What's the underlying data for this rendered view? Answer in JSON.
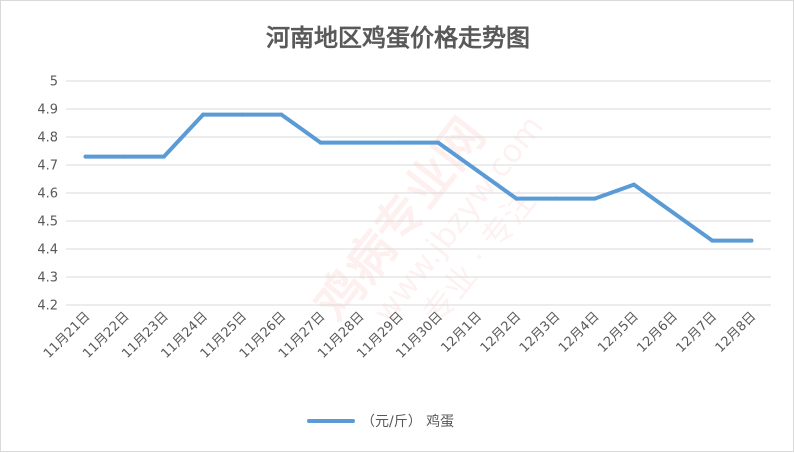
{
  "chart_data": {
    "type": "line",
    "title": "河南地区鸡蛋价格走势图",
    "categories": [
      "11月21日",
      "11月22日",
      "11月23日",
      "11月24日",
      "11月25日",
      "11月26日",
      "11月27日",
      "11月28日",
      "11月29日",
      "11月30日",
      "12月1日",
      "12月2日",
      "12月3日",
      "12月4日",
      "12月5日",
      "12月6日",
      "12月7日",
      "12月8日"
    ],
    "series": [
      {
        "name": "（元/斤） 鸡蛋",
        "color": "#5b9bd5",
        "values": [
          4.73,
          4.73,
          4.73,
          4.88,
          4.88,
          4.88,
          4.78,
          4.78,
          4.78,
          4.78,
          4.68,
          4.58,
          4.58,
          4.58,
          4.63,
          4.53,
          4.43,
          4.43
        ]
      }
    ],
    "ylim": [
      4.2,
      5.0
    ],
    "yticks": [
      "4.2",
      "4.3",
      "4.4",
      "4.5",
      "4.6",
      "4.7",
      "4.8",
      "4.9",
      "5"
    ],
    "xlabel": "",
    "ylabel": "",
    "grid": true,
    "legend_position": "bottom"
  },
  "watermark": {
    "main": "鸡病专业网",
    "url": "www.jbzyw.com",
    "sub": "专业 · 专注",
    "color": "#e8382c"
  }
}
